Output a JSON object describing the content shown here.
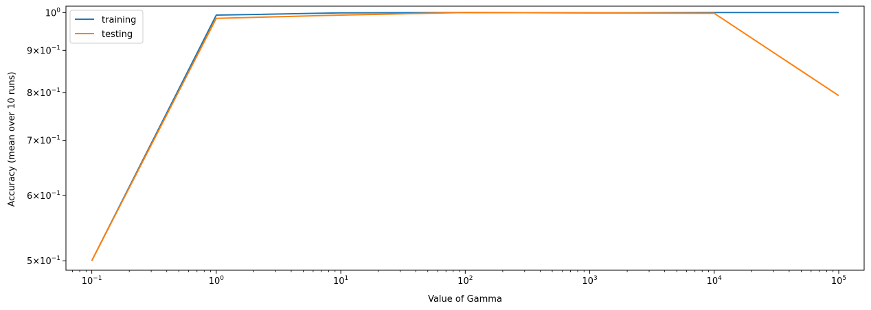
{
  "chart_data": {
    "type": "line",
    "title": "",
    "xlabel": "Value of Gamma",
    "ylabel": "Accuracy (mean over 10 runs)",
    "xscale": "log",
    "yscale": "log",
    "xlim": [
      0.062,
      160000
    ],
    "ylim": [
      0.487,
      1.018
    ],
    "x": [
      0.1,
      1,
      10,
      100,
      1000,
      10000,
      100000
    ],
    "series": [
      {
        "name": "training",
        "color": "#1f77b4",
        "values": [
          0.5,
          0.993,
          0.999,
          1.0,
          0.999,
          1.0,
          1.0
        ]
      },
      {
        "name": "testing",
        "color": "#ff7f0e",
        "values": [
          0.5,
          0.984,
          0.993,
          1.0,
          0.999,
          0.998,
          0.793
        ]
      }
    ],
    "xticks": [
      {
        "value": 0.1,
        "base": "10",
        "exp": "−1"
      },
      {
        "value": 1,
        "base": "10",
        "exp": "0"
      },
      {
        "value": 10,
        "base": "10",
        "exp": "1"
      },
      {
        "value": 100,
        "base": "10",
        "exp": "2"
      },
      {
        "value": 1000,
        "base": "10",
        "exp": "3"
      },
      {
        "value": 10000,
        "base": "10",
        "exp": "4"
      },
      {
        "value": 100000,
        "base": "10",
        "exp": "5"
      }
    ],
    "yticks": [
      {
        "value": 1.0,
        "mant": "",
        "base": "10",
        "exp": "0"
      },
      {
        "value": 0.9,
        "mant": "9×",
        "base": "10",
        "exp": "−1"
      },
      {
        "value": 0.8,
        "mant": "8×",
        "base": "10",
        "exp": "−1"
      },
      {
        "value": 0.7,
        "mant": "7×",
        "base": "10",
        "exp": "−1"
      },
      {
        "value": 0.6,
        "mant": "6×",
        "base": "10",
        "exp": "−1"
      },
      {
        "value": 0.5,
        "mant": "5×",
        "base": "10",
        "exp": "−1"
      }
    ],
    "legend": {
      "placement": "top-left"
    },
    "grid": false
  }
}
